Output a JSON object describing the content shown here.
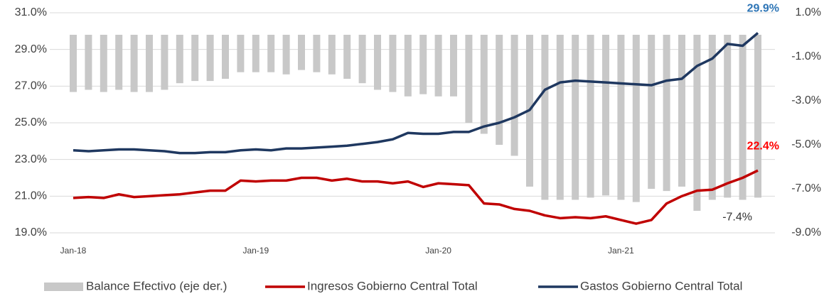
{
  "chart_data": {
    "type": "line",
    "categories": [
      "Jan-18",
      null,
      null,
      null,
      null,
      null,
      null,
      null,
      null,
      null,
      null,
      null,
      "Jan-19",
      null,
      null,
      null,
      null,
      null,
      null,
      null,
      null,
      null,
      null,
      null,
      "Jan-20",
      null,
      null,
      null,
      null,
      null,
      null,
      null,
      null,
      null,
      null,
      null,
      "Jan-21",
      null,
      null,
      null,
      null,
      null,
      null,
      null,
      null,
      null
    ],
    "series": [
      {
        "name": "Balance Efectivo (eje der.)",
        "type": "bar",
        "axis": "y2",
        "color": "#c8c8c8",
        "values": [
          -2.6,
          -2.5,
          -2.6,
          -2.5,
          -2.6,
          -2.6,
          -2.5,
          -2.2,
          -2.1,
          -2.1,
          -2.0,
          -1.7,
          -1.7,
          -1.7,
          -1.8,
          -1.6,
          -1.7,
          -1.8,
          -2.0,
          -2.2,
          -2.5,
          -2.6,
          -2.8,
          -2.7,
          -2.8,
          -2.8,
          -4.0,
          -4.5,
          -5.0,
          -5.5,
          -6.9,
          -7.5,
          -7.5,
          -7.5,
          -7.4,
          -7.3,
          -7.5,
          -7.6,
          -7.0,
          -7.1,
          -6.9,
          -8.0,
          -7.5,
          -7.4,
          -7.5,
          -7.4
        ],
        "value_labels": [
          null,
          null,
          null,
          null,
          null,
          null,
          null,
          null,
          null,
          null,
          null,
          null,
          null,
          null,
          null,
          null,
          null,
          null,
          null,
          null,
          null,
          null,
          null,
          null,
          null,
          null,
          null,
          null,
          null,
          null,
          null,
          null,
          null,
          null,
          null,
          null,
          null,
          null,
          null,
          null,
          null,
          null,
          null,
          null,
          null,
          "-7.4%"
        ],
        "label_color": "#333333"
      },
      {
        "name": "Ingresos Gobierno Central Total",
        "type": "line",
        "color": "#c00000",
        "values": [
          20.9,
          20.95,
          20.9,
          21.1,
          20.95,
          21.0,
          21.05,
          21.1,
          21.2,
          21.3,
          21.3,
          21.85,
          21.8,
          21.85,
          21.85,
          22.0,
          22.0,
          21.85,
          21.95,
          21.8,
          21.8,
          21.7,
          21.8,
          21.5,
          21.7,
          21.65,
          21.6,
          20.6,
          20.55,
          20.3,
          20.2,
          19.95,
          19.8,
          19.85,
          19.8,
          19.9,
          19.7,
          19.5,
          19.7,
          20.6,
          21.0,
          21.3,
          21.35,
          21.7,
          22.0,
          22.4
        ],
        "value_labels": [
          null,
          null,
          null,
          null,
          null,
          null,
          null,
          null,
          null,
          null,
          null,
          null,
          null,
          null,
          null,
          null,
          null,
          null,
          null,
          null,
          null,
          null,
          null,
          null,
          null,
          null,
          null,
          null,
          null,
          null,
          null,
          null,
          null,
          null,
          null,
          null,
          null,
          null,
          null,
          null,
          null,
          null,
          null,
          null,
          null,
          "22.4%"
        ],
        "label_color": "#ff0000"
      },
      {
        "name": "Gastos Gobierno Central Total",
        "type": "line",
        "color": "#1f3860",
        "values": [
          23.5,
          23.45,
          23.5,
          23.55,
          23.55,
          23.5,
          23.45,
          23.35,
          23.35,
          23.4,
          23.4,
          23.5,
          23.55,
          23.5,
          23.6,
          23.6,
          23.65,
          23.7,
          23.75,
          23.85,
          23.95,
          24.1,
          24.45,
          24.4,
          24.4,
          24.5,
          24.5,
          24.8,
          25.0,
          25.3,
          25.7,
          26.8,
          27.2,
          27.3,
          27.25,
          27.2,
          27.15,
          27.1,
          27.05,
          27.3,
          27.4,
          28.1,
          28.5,
          29.3,
          29.2,
          29.9
        ],
        "value_labels": [
          null,
          null,
          null,
          null,
          null,
          null,
          null,
          null,
          null,
          null,
          null,
          null,
          null,
          null,
          null,
          null,
          null,
          null,
          null,
          null,
          null,
          null,
          null,
          null,
          null,
          null,
          null,
          null,
          null,
          null,
          null,
          null,
          null,
          null,
          null,
          null,
          null,
          null,
          null,
          null,
          null,
          null,
          null,
          null,
          null,
          "29.9%"
        ],
        "label_color": "#2e75b6"
      }
    ],
    "ylim": [
      19,
      31
    ],
    "yticks": [
      {
        "value": 19,
        "label": "19.0%"
      },
      {
        "value": 21,
        "label": "21.0%"
      },
      {
        "value": 23,
        "label": "23.0%"
      },
      {
        "value": 25,
        "label": "25.0%"
      },
      {
        "value": 27,
        "label": "27.0%"
      },
      {
        "value": 29,
        "label": "29.0%"
      },
      {
        "value": 31,
        "label": "31.0%"
      }
    ],
    "y2lim": [
      -9,
      1
    ],
    "y2ticks": [
      {
        "value": -9,
        "label": "-9.0%"
      },
      {
        "value": -7,
        "label": "-7.0%"
      },
      {
        "value": -5,
        "label": "-5.0%"
      },
      {
        "value": -3,
        "label": "-3.0%"
      },
      {
        "value": -1,
        "label": "-1.0%"
      },
      {
        "value": 1,
        "label": "1.0%"
      }
    ],
    "grid": true,
    "legend": "bottom"
  }
}
